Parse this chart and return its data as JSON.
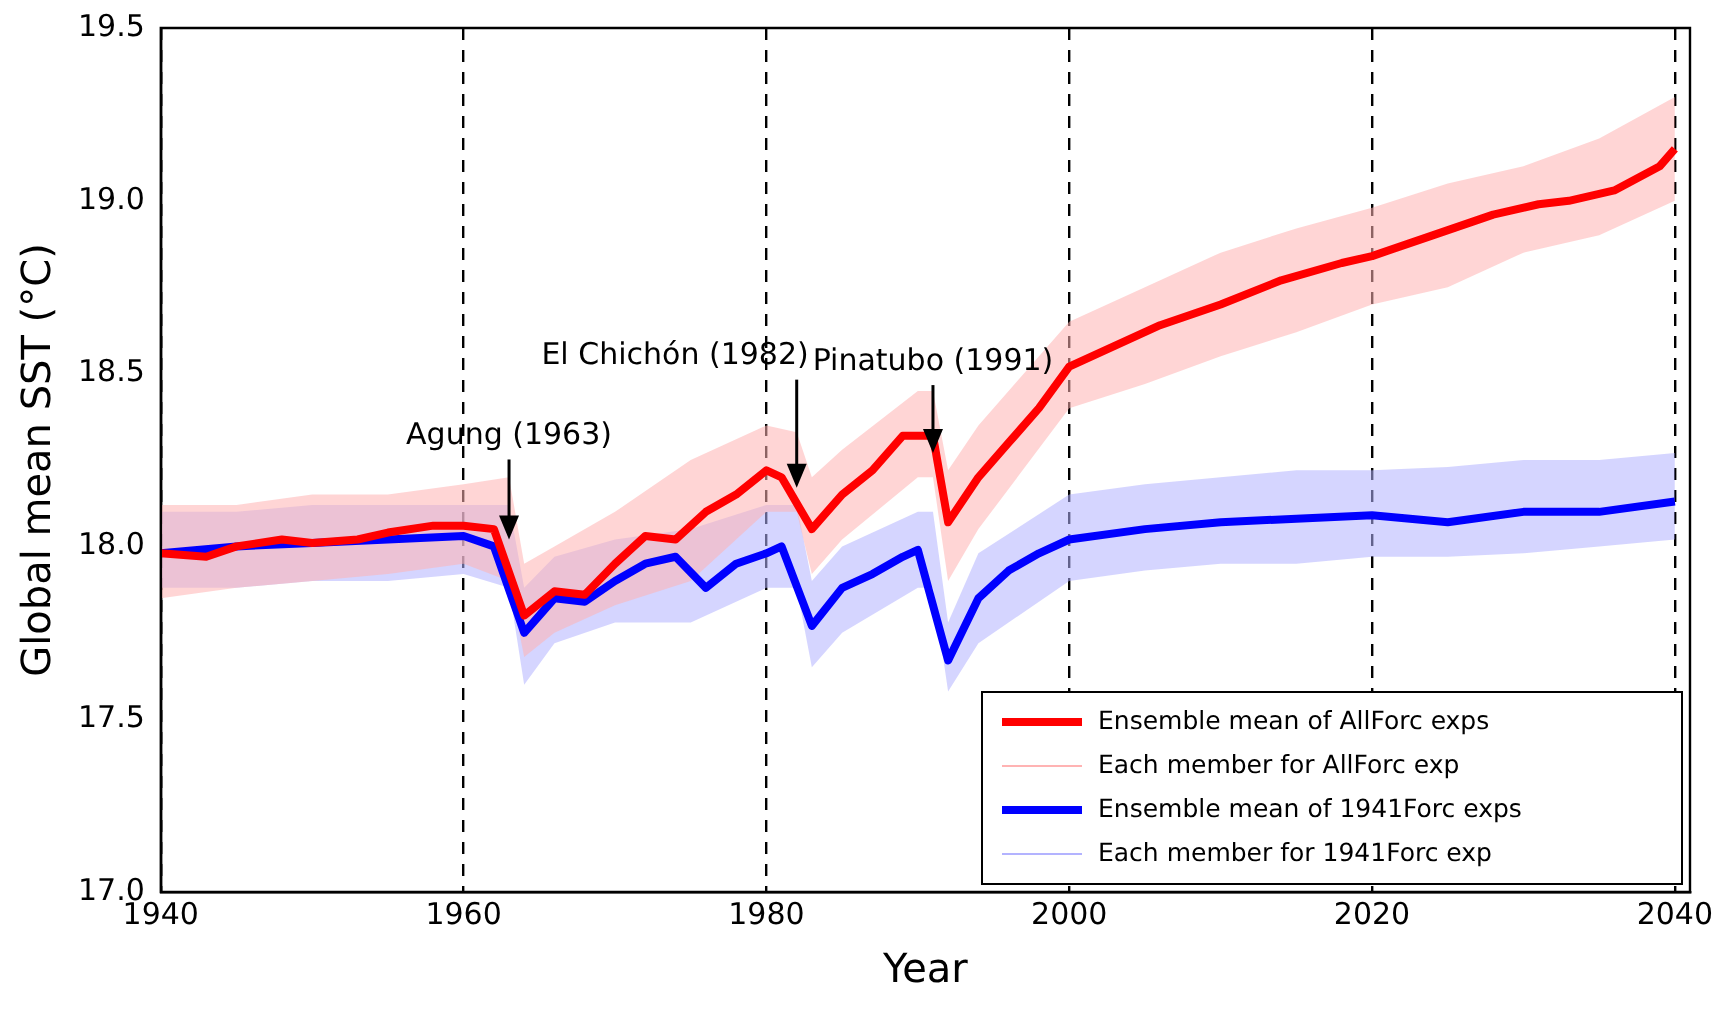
{
  "chart_data": {
    "type": "line",
    "xlabel": "Year",
    "ylabel": "Global mean SST (°C)",
    "xlim": [
      1940,
      2041
    ],
    "xticks": [
      1940,
      1960,
      1980,
      2000,
      2020,
      2040
    ],
    "ylim": [
      17,
      19.5
    ],
    "yticks": [
      {
        "value": 17,
        "label": "17.0"
      },
      {
        "value": 17.5,
        "label": "17.5"
      },
      {
        "value": 18,
        "label": "18.0"
      },
      {
        "value": 18.5,
        "label": "18.5"
      },
      {
        "value": 19,
        "label": "19.0"
      },
      {
        "value": 19.5,
        "label": "19.5"
      }
    ],
    "grid": "x",
    "legend": "bottom right",
    "marker": "none",
    "line_style": "solid",
    "annotations": [
      {
        "text": "Agung (1963)",
        "x": 1963,
        "y": 18.02
      },
      {
        "text": "El Chichón (1982)",
        "x": 1982,
        "y": 18.17
      },
      {
        "text": "Pinatubo (1991)",
        "x": 1991,
        "y": 18.27
      }
    ],
    "series": [
      {
        "name": "Ensemble mean of AllForc exps",
        "color": "#ff0000",
        "x": [
          1940,
          1943,
          1945,
          1948,
          1950,
          1953,
          1955,
          1958,
          1960,
          1962,
          1964,
          1966,
          1968,
          1970,
          1972,
          1974,
          1976,
          1978,
          1980,
          1981,
          1983,
          1985,
          1987,
          1989,
          1991,
          1992,
          1994,
          1996,
          1998,
          2000,
          2003,
          2006,
          2010,
          2014,
          2018,
          2020,
          2024,
          2028,
          2031,
          2033,
          2036,
          2039,
          2040
        ],
        "values": [
          17.98,
          17.97,
          18.0,
          18.02,
          18.01,
          18.02,
          18.04,
          18.06,
          18.06,
          18.05,
          17.8,
          17.87,
          17.86,
          17.95,
          18.03,
          18.02,
          18.1,
          18.15,
          18.22,
          18.2,
          18.05,
          18.15,
          18.22,
          18.32,
          18.32,
          18.07,
          18.2,
          18.3,
          18.4,
          18.52,
          18.58,
          18.64,
          18.7,
          18.77,
          18.82,
          18.84,
          18.9,
          18.96,
          18.99,
          19.0,
          19.03,
          19.1,
          19.15
        ]
      },
      {
        "name": "Each member for AllForc exp",
        "color": "#ffb3b3",
        "x": [
          1940,
          1945,
          1950,
          1955,
          1960,
          1963,
          1964,
          1966,
          1970,
          1975,
          1980,
          1982,
          1983,
          1985,
          1990,
          1991,
          1992,
          1994,
          2000,
          2005,
          2010,
          2015,
          2020,
          2025,
          2030,
          2035,
          2040
        ],
        "values": [
          null,
          null,
          null,
          null,
          null,
          null,
          null,
          null,
          null,
          null,
          null,
          null,
          null,
          null,
          null,
          null,
          null,
          null,
          null,
          null,
          null,
          null,
          null,
          null,
          null,
          null,
          null
        ],
        "lower": [
          17.85,
          17.88,
          17.9,
          17.92,
          17.95,
          17.9,
          17.68,
          17.75,
          17.83,
          17.9,
          18.1,
          18.1,
          17.92,
          18.02,
          18.2,
          18.2,
          17.9,
          18.05,
          18.4,
          18.47,
          18.55,
          18.62,
          18.7,
          18.75,
          18.85,
          18.9,
          19.0
        ],
        "upper": [
          18.12,
          18.12,
          18.15,
          18.15,
          18.18,
          18.2,
          17.95,
          18.0,
          18.1,
          18.25,
          18.35,
          18.33,
          18.2,
          18.28,
          18.45,
          18.45,
          18.22,
          18.35,
          18.65,
          18.75,
          18.85,
          18.92,
          18.98,
          19.05,
          19.1,
          19.18,
          19.3
        ]
      },
      {
        "name": "Ensemble mean of 1941Forc exps",
        "color": "#0000ff",
        "x": [
          1940,
          1945,
          1950,
          1955,
          1960,
          1962,
          1964,
          1966,
          1968,
          1970,
          1972,
          1974,
          1976,
          1978,
          1980,
          1981,
          1983,
          1985,
          1987,
          1989,
          1990,
          1992,
          1994,
          1996,
          1998,
          2000,
          2005,
          2010,
          2015,
          2020,
          2025,
          2030,
          2035,
          2040
        ],
        "values": [
          17.98,
          18.0,
          18.01,
          18.02,
          18.03,
          18.0,
          17.75,
          17.85,
          17.84,
          17.9,
          17.95,
          17.97,
          17.88,
          17.95,
          17.98,
          18.0,
          17.77,
          17.88,
          17.92,
          17.97,
          17.99,
          17.67,
          17.85,
          17.93,
          17.98,
          18.02,
          18.05,
          18.07,
          18.08,
          18.09,
          18.07,
          18.1,
          18.1,
          18.13
        ]
      },
      {
        "name": "Each member for 1941Forc exp",
        "color": "#b3b3ff",
        "x": [
          1940,
          1945,
          1950,
          1955,
          1960,
          1963,
          1964,
          1966,
          1970,
          1975,
          1980,
          1982,
          1983,
          1985,
          1990,
          1991,
          1992,
          1994,
          2000,
          2005,
          2010,
          2015,
          2020,
          2025,
          2030,
          2035,
          2040
        ],
        "values": [
          null,
          null,
          null,
          null,
          null,
          null,
          null,
          null,
          null,
          null,
          null,
          null,
          null,
          null,
          null,
          null,
          null,
          null,
          null,
          null,
          null,
          null,
          null,
          null,
          null,
          null,
          null
        ],
        "lower": [
          17.88,
          17.88,
          17.9,
          17.9,
          17.92,
          17.88,
          17.6,
          17.72,
          17.78,
          17.78,
          17.88,
          17.88,
          17.65,
          17.75,
          17.88,
          17.88,
          17.58,
          17.72,
          17.9,
          17.93,
          17.95,
          17.95,
          17.97,
          17.97,
          17.98,
          18.0,
          18.02
        ],
        "upper": [
          18.1,
          18.1,
          18.12,
          18.12,
          18.12,
          18.12,
          17.88,
          17.97,
          18.02,
          18.05,
          18.12,
          18.12,
          17.9,
          18.0,
          18.1,
          18.1,
          17.78,
          17.98,
          18.15,
          18.18,
          18.2,
          18.22,
          18.22,
          18.23,
          18.25,
          18.25,
          18.27
        ]
      }
    ]
  }
}
